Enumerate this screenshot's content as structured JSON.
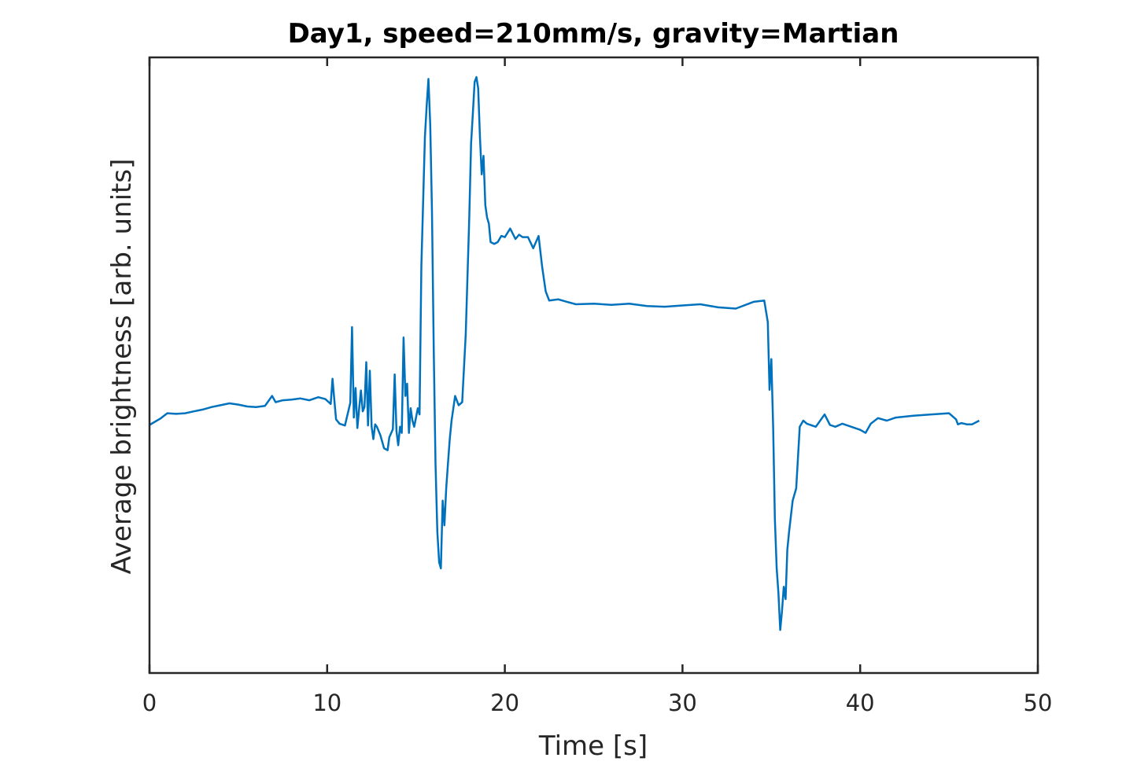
{
  "chart_data": {
    "type": "line",
    "title": "Day1, speed=210mm/s, gravity=Martian",
    "xlabel": "Time [s]",
    "ylabel": "Average brightness [arb. units]",
    "xlim": [
      0,
      50
    ],
    "ylim": [
      0,
      1
    ],
    "xticks": [
      0,
      10,
      20,
      30,
      40,
      50
    ],
    "xtick_labels": [
      "0",
      "10",
      "20",
      "30",
      "40",
      "50"
    ],
    "yticks": [],
    "grid": false,
    "legend": "none",
    "series": [
      {
        "color": "#0072BD",
        "x": [
          0,
          0.3,
          0.6,
          1.0,
          1.5,
          2.0,
          2.5,
          3.0,
          3.5,
          4.0,
          4.5,
          5.0,
          5.5,
          6.0,
          6.5,
          6.9,
          7.1,
          7.5,
          8.0,
          8.5,
          9.0,
          9.5,
          9.9,
          10.2,
          10.3,
          10.4,
          10.5,
          10.7,
          11.0,
          11.3,
          11.4,
          11.5,
          11.6,
          11.7,
          11.8,
          11.9,
          12.0,
          12.1,
          12.2,
          12.3,
          12.4,
          12.5,
          12.6,
          12.7,
          12.8,
          13.0,
          13.2,
          13.4,
          13.5,
          13.7,
          13.8,
          13.9,
          14.0,
          14.1,
          14.2,
          14.3,
          14.4,
          14.5,
          14.6,
          14.7,
          14.8,
          14.9,
          15.0,
          15.1,
          15.2,
          15.3,
          15.5,
          15.6,
          15.7,
          15.8,
          15.9,
          16.0,
          16.1,
          16.2,
          16.3,
          16.4,
          16.5,
          16.6,
          16.7,
          16.8,
          16.9,
          17.0,
          17.2,
          17.4,
          17.6,
          17.8,
          18.0,
          18.1,
          18.2,
          18.3,
          18.4,
          18.5,
          18.6,
          18.7,
          18.8,
          18.9,
          19.0,
          19.1,
          19.2,
          19.4,
          19.6,
          19.8,
          20.0,
          20.3,
          20.6,
          20.8,
          21.0,
          21.3,
          21.6,
          21.9,
          22.1,
          22.3,
          22.5,
          23.0,
          23.5,
          24.0,
          25.0,
          26.0,
          27.0,
          28.0,
          29.0,
          30.0,
          31.0,
          32.0,
          33.0,
          34.0,
          34.6,
          34.8,
          34.9,
          35.0,
          35.1,
          35.2,
          35.3,
          35.4,
          35.5,
          35.6,
          35.7,
          35.8,
          35.9,
          36.0,
          36.2,
          36.4,
          36.6,
          36.8,
          37.0,
          37.5,
          38.0,
          38.3,
          38.6,
          39.0,
          39.5,
          40.0,
          40.3,
          40.6,
          41.0,
          41.5,
          42.0,
          43.0,
          44.0,
          45.0,
          45.4,
          45.5,
          45.7,
          46.0,
          46.3,
          46.7
        ],
        "y": [
          0.403,
          0.408,
          0.413,
          0.422,
          0.421,
          0.422,
          0.425,
          0.428,
          0.432,
          0.435,
          0.438,
          0.436,
          0.433,
          0.432,
          0.434,
          0.45,
          0.44,
          0.443,
          0.444,
          0.446,
          0.443,
          0.448,
          0.445,
          0.437,
          0.478,
          0.445,
          0.412,
          0.405,
          0.402,
          0.439,
          0.562,
          0.415,
          0.463,
          0.398,
          0.429,
          0.459,
          0.425,
          0.432,
          0.505,
          0.402,
          0.491,
          0.4,
          0.38,
          0.404,
          0.4,
          0.386,
          0.365,
          0.362,
          0.383,
          0.396,
          0.485,
          0.393,
          0.37,
          0.4,
          0.39,
          0.545,
          0.45,
          0.47,
          0.39,
          0.43,
          0.41,
          0.4,
          0.415,
          0.43,
          0.42,
          0.66,
          0.87,
          0.92,
          0.965,
          0.89,
          0.75,
          0.52,
          0.34,
          0.23,
          0.18,
          0.17,
          0.28,
          0.24,
          0.3,
          0.34,
          0.38,
          0.41,
          0.45,
          0.435,
          0.44,
          0.55,
          0.74,
          0.86,
          0.91,
          0.96,
          0.968,
          0.95,
          0.87,
          0.81,
          0.84,
          0.76,
          0.74,
          0.73,
          0.7,
          0.697,
          0.7,
          0.71,
          0.708,
          0.722,
          0.705,
          0.712,
          0.708,
          0.708,
          0.69,
          0.71,
          0.66,
          0.62,
          0.605,
          0.607,
          0.603,
          0.599,
          0.6,
          0.598,
          0.6,
          0.596,
          0.595,
          0.597,
          0.599,
          0.594,
          0.592,
          0.603,
          0.605,
          0.57,
          0.46,
          0.51,
          0.4,
          0.25,
          0.17,
          0.13,
          0.07,
          0.1,
          0.14,
          0.12,
          0.2,
          0.23,
          0.28,
          0.3,
          0.4,
          0.41,
          0.405,
          0.4,
          0.42,
          0.403,
          0.4,
          0.405,
          0.4,
          0.395,
          0.39,
          0.405,
          0.414,
          0.41,
          0.415,
          0.418,
          0.42,
          0.422,
          0.412,
          0.404,
          0.406,
          0.404,
          0.404,
          0.41
        ]
      }
    ]
  }
}
